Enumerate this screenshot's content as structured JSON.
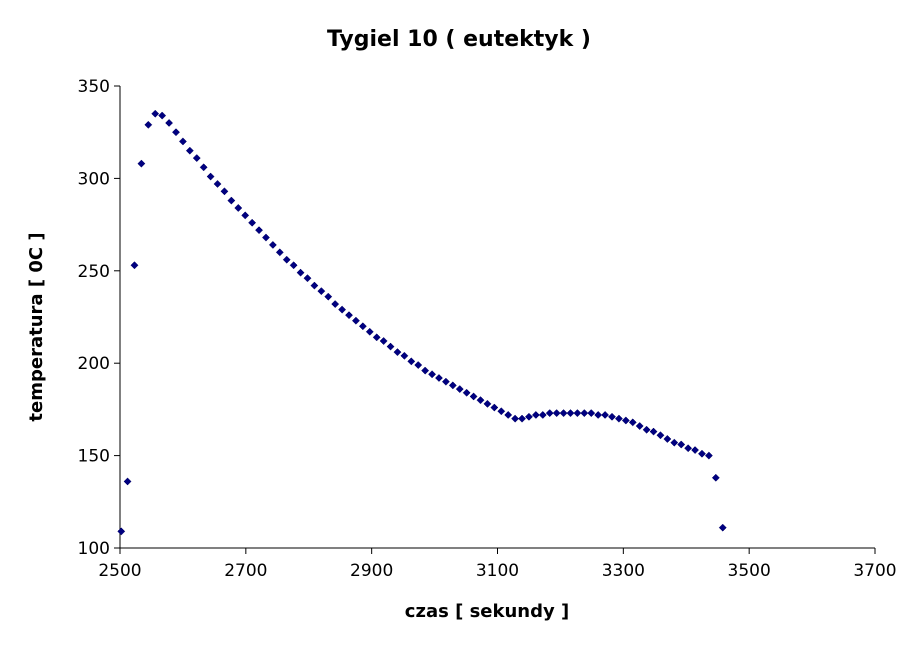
{
  "chart_data": {
    "type": "scatter",
    "title": "Tygiel 10 ( eutektyk )",
    "xlabel": "czas [ sekundy ]",
    "ylabel": "temperatura [ 0C ]",
    "xlim": [
      2500,
      3700
    ],
    "ylim": [
      100,
      350
    ],
    "xticks": [
      2500,
      2700,
      2900,
      3100,
      3300,
      3500,
      3700
    ],
    "yticks": [
      100,
      150,
      200,
      250,
      300,
      350
    ],
    "xtick_labels": [
      "2500",
      "2700",
      "2900",
      "3100",
      "3300",
      "3500",
      "3700"
    ],
    "ytick_labels": [
      "100",
      "150",
      "200",
      "250",
      "300",
      "350"
    ],
    "grid": false,
    "legend": "none",
    "marker": "diamond",
    "color": "#000080",
    "series": [
      {
        "points": [
          [
            2502,
            109
          ],
          [
            2512,
            136
          ],
          [
            2523,
            253
          ],
          [
            2534,
            308
          ],
          [
            2545,
            329
          ],
          [
            2556,
            335
          ],
          [
            2567,
            334
          ],
          [
            2578,
            330
          ],
          [
            2589,
            325
          ],
          [
            2600,
            320
          ],
          [
            2611,
            315
          ],
          [
            2622,
            311
          ],
          [
            2633,
            306
          ],
          [
            2644,
            301
          ],
          [
            2655,
            297
          ],
          [
            2666,
            293
          ],
          [
            2677,
            288
          ],
          [
            2688,
            284
          ],
          [
            2699,
            280
          ],
          [
            2710,
            276
          ],
          [
            2721,
            272
          ],
          [
            2732,
            268
          ],
          [
            2743,
            264
          ],
          [
            2754,
            260
          ],
          [
            2765,
            256
          ],
          [
            2776,
            253
          ],
          [
            2787,
            249
          ],
          [
            2798,
            246
          ],
          [
            2809,
            242
          ],
          [
            2820,
            239
          ],
          [
            2831,
            236
          ],
          [
            2842,
            232
          ],
          [
            2853,
            229
          ],
          [
            2864,
            226
          ],
          [
            2875,
            223
          ],
          [
            2886,
            220
          ],
          [
            2897,
            217
          ],
          [
            2908,
            214
          ],
          [
            2919,
            212
          ],
          [
            2930,
            209
          ],
          [
            2941,
            206
          ],
          [
            2952,
            204
          ],
          [
            2963,
            201
          ],
          [
            2974,
            199
          ],
          [
            2985,
            196
          ],
          [
            2996,
            194
          ],
          [
            3007,
            192
          ],
          [
            3018,
            190
          ],
          [
            3029,
            188
          ],
          [
            3040,
            186
          ],
          [
            3051,
            184
          ],
          [
            3062,
            182
          ],
          [
            3073,
            180
          ],
          [
            3084,
            178
          ],
          [
            3095,
            176
          ],
          [
            3106,
            174
          ],
          [
            3117,
            172
          ],
          [
            3128,
            170
          ],
          [
            3139,
            170
          ],
          [
            3150,
            171
          ],
          [
            3161,
            172
          ],
          [
            3172,
            172
          ],
          [
            3183,
            173
          ],
          [
            3194,
            173
          ],
          [
            3205,
            173
          ],
          [
            3216,
            173
          ],
          [
            3227,
            173
          ],
          [
            3238,
            173
          ],
          [
            3249,
            173
          ],
          [
            3260,
            172
          ],
          [
            3271,
            172
          ],
          [
            3282,
            171
          ],
          [
            3293,
            170
          ],
          [
            3304,
            169
          ],
          [
            3315,
            168
          ],
          [
            3326,
            166
          ],
          [
            3337,
            164
          ],
          [
            3348,
            163
          ],
          [
            3359,
            161
          ],
          [
            3370,
            159
          ],
          [
            3381,
            157
          ],
          [
            3392,
            156
          ],
          [
            3403,
            154
          ],
          [
            3414,
            153
          ],
          [
            3425,
            151
          ],
          [
            3436,
            150
          ],
          [
            3447,
            138
          ],
          [
            3458,
            111
          ]
        ]
      }
    ]
  }
}
